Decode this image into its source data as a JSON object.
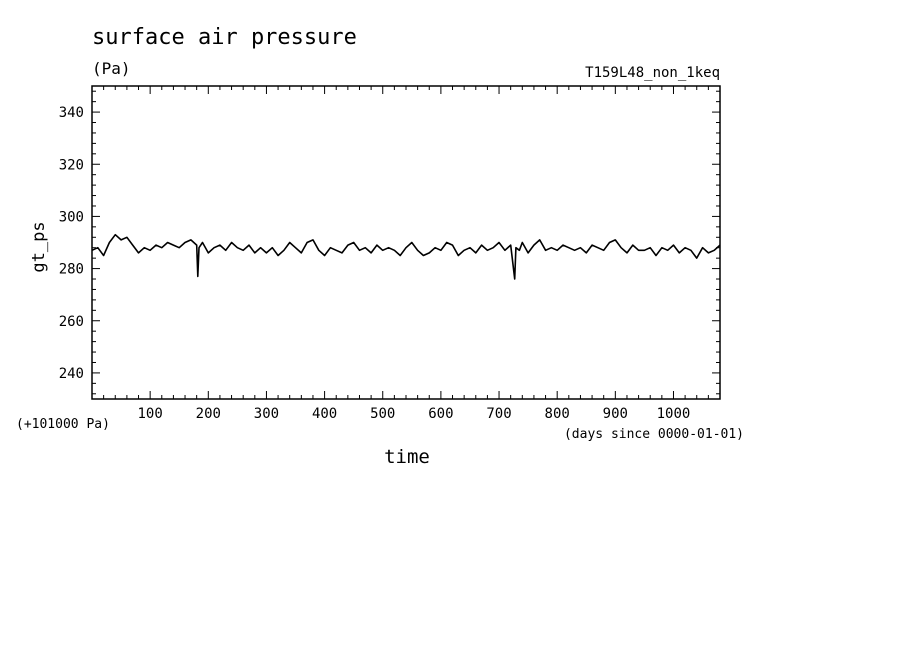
{
  "chart_data": {
    "type": "line",
    "title": "surface air pressure",
    "units": "(Pa)",
    "run_label": "T159L48_non_1keq",
    "ylabel": "gt_ps",
    "xlabel": "time",
    "offset_label": "(+101000 Pa)",
    "x_unit_label": "(days since 0000-01-01)",
    "xlim": [
      0,
      1080
    ],
    "ylim": [
      230,
      350
    ],
    "x_ticks": [
      100,
      200,
      300,
      400,
      500,
      600,
      700,
      800,
      900,
      1000
    ],
    "y_ticks": [
      240,
      260,
      280,
      300,
      320,
      340
    ],
    "grid": false,
    "series": [
      {
        "x": [
          0,
          10,
          20,
          30,
          40,
          50,
          60,
          70,
          80,
          90,
          100,
          110,
          120,
          130,
          140,
          150,
          160,
          170,
          180,
          182,
          184,
          190,
          200,
          210,
          220,
          230,
          240,
          250,
          260,
          270,
          280,
          290,
          300,
          310,
          320,
          330,
          340,
          350,
          360,
          370,
          380,
          390,
          400,
          410,
          420,
          430,
          440,
          450,
          460,
          470,
          480,
          490,
          500,
          510,
          520,
          530,
          540,
          550,
          560,
          570,
          580,
          590,
          600,
          610,
          620,
          630,
          640,
          650,
          660,
          670,
          680,
          690,
          700,
          710,
          720,
          727,
          729,
          735,
          740,
          750,
          760,
          770,
          780,
          790,
          800,
          810,
          820,
          830,
          840,
          850,
          860,
          870,
          880,
          890,
          900,
          910,
          920,
          930,
          940,
          950,
          960,
          970,
          980,
          990,
          1000,
          1010,
          1020,
          1030,
          1040,
          1050,
          1060,
          1070,
          1080
        ],
        "y": [
          287,
          288,
          285,
          290,
          293,
          291,
          292,
          289,
          286,
          288,
          287,
          289,
          288,
          290,
          289,
          288,
          290,
          291,
          289,
          277,
          288,
          290,
          286,
          288,
          289,
          287,
          290,
          288,
          287,
          289,
          286,
          288,
          286,
          288,
          285,
          287,
          290,
          288,
          286,
          290,
          291,
          287,
          285,
          288,
          287,
          286,
          289,
          290,
          287,
          288,
          286,
          289,
          287,
          288,
          287,
          285,
          288,
          290,
          287,
          285,
          286,
          288,
          287,
          290,
          289,
          285,
          287,
          288,
          286,
          289,
          287,
          288,
          290,
          287,
          289,
          276,
          288,
          287,
          290,
          286,
          289,
          291,
          287,
          288,
          287,
          289,
          288,
          287,
          288,
          286,
          289,
          288,
          287,
          290,
          291,
          288,
          286,
          289,
          287,
          287,
          288,
          285,
          288,
          287,
          289,
          286,
          288,
          287,
          284,
          288,
          286,
          287,
          289
        ]
      }
    ]
  }
}
